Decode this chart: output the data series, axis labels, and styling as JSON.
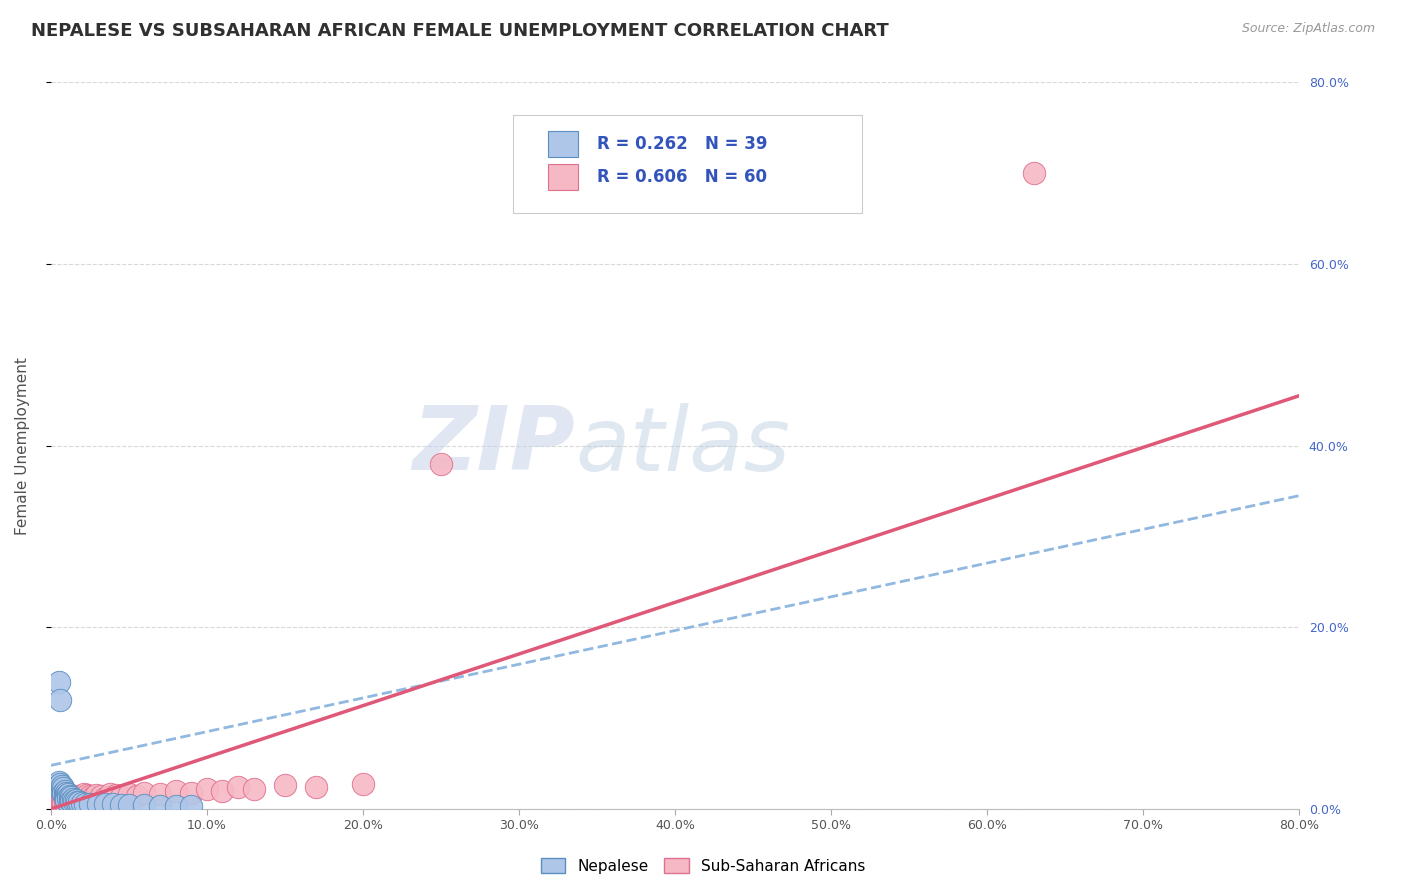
{
  "title": "NEPALESE VS SUBSAHARAN AFRICAN FEMALE UNEMPLOYMENT CORRELATION CHART",
  "source": "Source: ZipAtlas.com",
  "ylabel": "Female Unemployment",
  "xlim": [
    0.0,
    0.8
  ],
  "ylim": [
    0.0,
    0.8
  ],
  "watermark_ZIP": "ZIP",
  "watermark_atlas": "atlas",
  "legend_labels": [
    "Nepalese",
    "Sub-Saharan Africans"
  ],
  "nepalese_color": "#aec6e8",
  "subsaharan_color": "#f5b8c4",
  "nepalese_edge": "#5a8fc0",
  "subsaharan_edge": "#e07090",
  "trend_blue_color": "#90b8e0",
  "trend_pink_color": "#e05878",
  "R_nepalese": 0.262,
  "N_nepalese": 39,
  "R_subsaharan": 0.606,
  "N_subsaharan": 60,
  "background_color": "#ffffff",
  "grid_color": "#d8d8d8",
  "title_color": "#303030",
  "axis_label_color": "#505050",
  "legend_color": "#3355bb",
  "right_axis_color": "#4466cc",
  "nepalese_x": [
    0.005,
    0.005,
    0.006,
    0.006,
    0.007,
    0.007,
    0.008,
    0.008,
    0.009,
    0.009,
    0.01,
    0.01,
    0.01,
    0.01,
    0.011,
    0.011,
    0.012,
    0.012,
    0.013,
    0.013,
    0.014,
    0.015,
    0.016,
    0.017,
    0.018,
    0.02,
    0.022,
    0.025,
    0.03,
    0.035,
    0.04,
    0.045,
    0.05,
    0.06,
    0.07,
    0.08,
    0.09,
    0.005,
    0.006
  ],
  "nepalese_y": [
    0.03,
    0.025,
    0.028,
    0.022,
    0.025,
    0.02,
    0.023,
    0.018,
    0.02,
    0.015,
    0.018,
    0.014,
    0.012,
    0.01,
    0.016,
    0.012,
    0.014,
    0.01,
    0.013,
    0.009,
    0.011,
    0.009,
    0.01,
    0.008,
    0.008,
    0.007,
    0.006,
    0.006,
    0.005,
    0.006,
    0.005,
    0.004,
    0.004,
    0.004,
    0.003,
    0.003,
    0.003,
    0.14,
    0.12
  ],
  "subsaharan_x": [
    0.003,
    0.004,
    0.005,
    0.005,
    0.006,
    0.006,
    0.007,
    0.007,
    0.008,
    0.008,
    0.009,
    0.009,
    0.01,
    0.01,
    0.011,
    0.011,
    0.012,
    0.012,
    0.013,
    0.013,
    0.014,
    0.014,
    0.015,
    0.015,
    0.016,
    0.017,
    0.018,
    0.019,
    0.02,
    0.021,
    0.022,
    0.023,
    0.024,
    0.025,
    0.026,
    0.027,
    0.028,
    0.029,
    0.03,
    0.032,
    0.035,
    0.038,
    0.04,
    0.042,
    0.045,
    0.05,
    0.055,
    0.06,
    0.07,
    0.08,
    0.09,
    0.1,
    0.11,
    0.12,
    0.13,
    0.15,
    0.17,
    0.2,
    0.63,
    0.25
  ],
  "subsaharan_y": [
    0.015,
    0.012,
    0.018,
    0.01,
    0.015,
    0.008,
    0.013,
    0.007,
    0.012,
    0.006,
    0.01,
    0.005,
    0.009,
    0.004,
    0.008,
    0.014,
    0.007,
    0.012,
    0.006,
    0.011,
    0.005,
    0.01,
    0.004,
    0.009,
    0.014,
    0.008,
    0.013,
    0.007,
    0.012,
    0.016,
    0.011,
    0.015,
    0.009,
    0.014,
    0.008,
    0.013,
    0.01,
    0.015,
    0.009,
    0.014,
    0.012,
    0.016,
    0.011,
    0.015,
    0.013,
    0.017,
    0.014,
    0.018,
    0.016,
    0.02,
    0.018,
    0.022,
    0.02,
    0.024,
    0.022,
    0.026,
    0.024,
    0.028,
    0.7,
    0.38
  ],
  "trend_blue_x0": 0.0,
  "trend_blue_y0": 0.048,
  "trend_blue_x1": 0.8,
  "trend_blue_y1": 0.345,
  "trend_pink_x0": 0.0,
  "trend_pink_y0": 0.0,
  "trend_pink_x1": 0.8,
  "trend_pink_y1": 0.455
}
